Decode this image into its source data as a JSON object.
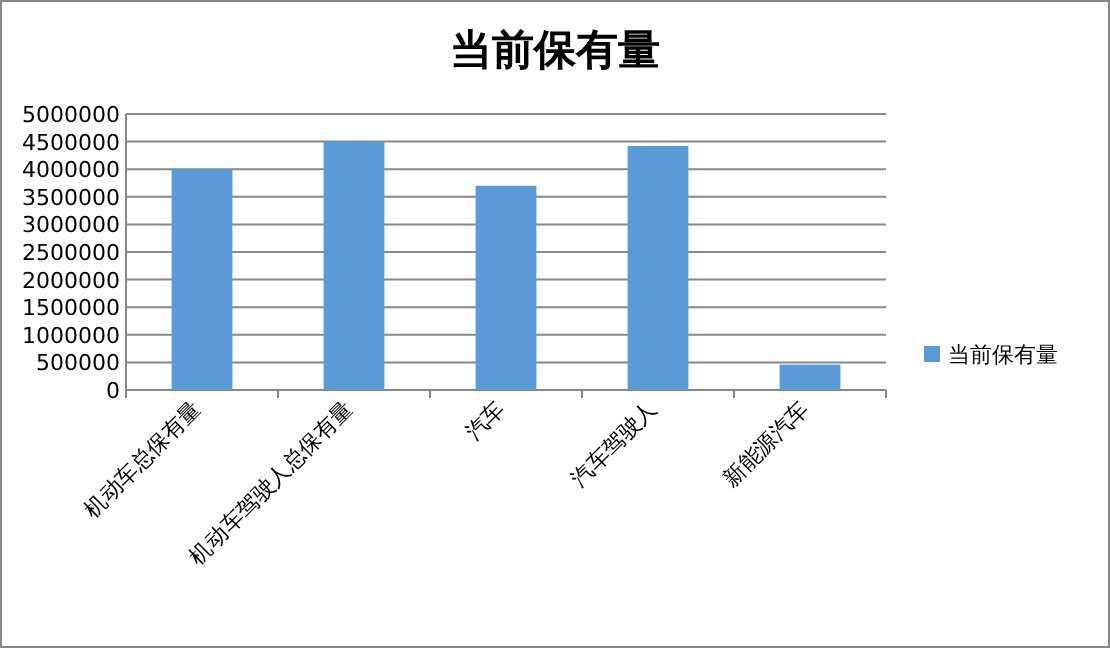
{
  "chart_data": {
    "type": "bar",
    "title": "当前保有量",
    "categories": [
      "机动车总保有量",
      "机动车驾驶人总保有量",
      "汽车",
      "汽车驾驶人",
      "新能源汽车"
    ],
    "series": [
      {
        "name": "当前保有量",
        "color": "#5b9bd5",
        "values": [
          4000000,
          4500000,
          3700000,
          4420000,
          460000
        ]
      }
    ],
    "ylim": [
      0,
      5000000
    ],
    "yticks": [
      0,
      500000,
      1000000,
      1500000,
      2000000,
      2500000,
      3000000,
      3500000,
      4000000,
      4500000,
      5000000
    ],
    "grid": "y",
    "legend": "right"
  }
}
